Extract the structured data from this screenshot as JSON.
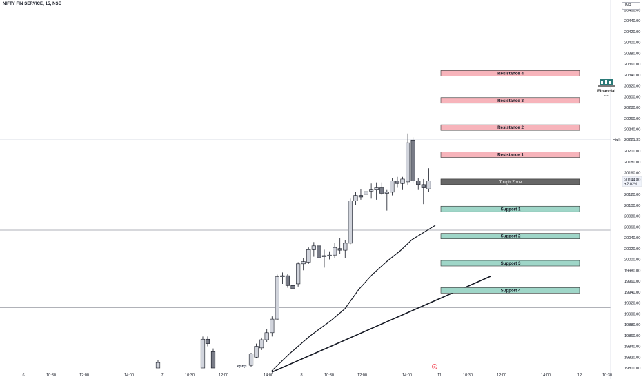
{
  "header": {
    "symbol_title": "NIFTY FIN SERVICE, 15, NSE",
    "currency": "INR"
  },
  "logo": {
    "name": "Financial",
    "subtext": "BUZZ"
  },
  "colors": {
    "up_candle": "#d1d4dc",
    "down_candle": "#787b86",
    "wick": "#131722",
    "resistance_fill": "#f7b4bb",
    "support_fill": "#9fd6c8",
    "tough_zone_fill": "#676767",
    "hline": "#9598a1",
    "axis_text": "#131722"
  },
  "chart_data": {
    "type": "candlestick",
    "ylim": [
      19800,
      20480
    ],
    "y_ticks": [
      19800,
      19820,
      19840,
      19860,
      19880,
      19900,
      19920,
      19940,
      19960,
      19980,
      20000,
      20020,
      20040,
      20060,
      20080,
      20100,
      20120,
      20140,
      20160,
      20180,
      20200,
      20220,
      20240,
      20260,
      20280,
      20300,
      20320,
      20340,
      20360,
      20380,
      20400,
      20420,
      20440,
      20460
    ],
    "x_labels": [
      "6",
      "10:30",
      "12:00",
      "14:00",
      "7",
      "10:30",
      "12:00",
      "14:00",
      "8",
      "10:30",
      "12:00",
      "14:00",
      "11",
      "10:30",
      "12:00",
      "14:00",
      "12",
      "10:30"
    ],
    "candles": [
      {
        "o": 19800,
        "h": 19815,
        "l": 19800,
        "c": 19810
      },
      {
        "o": 19800,
        "h": 19858,
        "l": 19800,
        "c": 19853
      },
      {
        "o": 19853,
        "h": 19858,
        "l": 19840,
        "c": 19845
      },
      {
        "o": 19830,
        "h": 19836,
        "l": 19800,
        "c": 19800
      },
      {
        "o": 19802,
        "h": 19806,
        "l": 19800,
        "c": 19804
      },
      {
        "o": 19802,
        "h": 19806,
        "l": 19800,
        "c": 19805
      },
      {
        "o": 19805,
        "h": 19828,
        "l": 19802,
        "c": 19826
      },
      {
        "o": 19820,
        "h": 19845,
        "l": 19818,
        "c": 19840
      },
      {
        "o": 19837,
        "h": 19856,
        "l": 19833,
        "c": 19852
      },
      {
        "o": 19852,
        "h": 19872,
        "l": 19848,
        "c": 19865
      },
      {
        "o": 19865,
        "h": 19895,
        "l": 19858,
        "c": 19890
      },
      {
        "o": 19890,
        "h": 19972,
        "l": 19888,
        "c": 19968
      },
      {
        "o": 19968,
        "h": 19976,
        "l": 19955,
        "c": 19970
      },
      {
        "o": 19970,
        "h": 19974,
        "l": 19948,
        "c": 19952
      },
      {
        "o": 19952,
        "h": 19955,
        "l": 19940,
        "c": 19946
      },
      {
        "o": 19955,
        "h": 19995,
        "l": 19950,
        "c": 19992
      },
      {
        "o": 19992,
        "h": 20002,
        "l": 19980,
        "c": 19996
      },
      {
        "o": 19995,
        "h": 20022,
        "l": 19992,
        "c": 20018
      },
      {
        "o": 20018,
        "h": 20032,
        "l": 20005,
        "c": 20025
      },
      {
        "o": 20025,
        "h": 20032,
        "l": 19998,
        "c": 20003
      },
      {
        "o": 20005,
        "h": 20018,
        "l": 19985,
        "c": 20007
      },
      {
        "o": 20007,
        "h": 20015,
        "l": 20000,
        "c": 20008
      },
      {
        "o": 20008,
        "h": 20030,
        "l": 20002,
        "c": 20022
      },
      {
        "o": 20020,
        "h": 20040,
        "l": 20010,
        "c": 20017
      },
      {
        "o": 20017,
        "h": 20036,
        "l": 20002,
        "c": 20030
      },
      {
        "o": 20030,
        "h": 20112,
        "l": 20028,
        "c": 20108
      },
      {
        "o": 20108,
        "h": 20125,
        "l": 20100,
        "c": 20118
      },
      {
        "o": 20118,
        "h": 20130,
        "l": 20110,
        "c": 20115
      },
      {
        "o": 20120,
        "h": 20130,
        "l": 20110,
        "c": 20125
      },
      {
        "o": 20126,
        "h": 20140,
        "l": 20112,
        "c": 20128
      },
      {
        "o": 20128,
        "h": 20142,
        "l": 20110,
        "c": 20132
      },
      {
        "o": 20132,
        "h": 20142,
        "l": 20119,
        "c": 20122
      },
      {
        "o": 20122,
        "h": 20128,
        "l": 20090,
        "c": 20124
      },
      {
        "o": 20124,
        "h": 20150,
        "l": 20118,
        "c": 20145
      },
      {
        "o": 20145,
        "h": 20152,
        "l": 20132,
        "c": 20140
      },
      {
        "o": 20140,
        "h": 20152,
        "l": 20128,
        "c": 20148
      },
      {
        "o": 20143,
        "h": 20232,
        "l": 20138,
        "c": 20215
      },
      {
        "o": 20220,
        "h": 20225,
        "l": 20140,
        "c": 20145
      },
      {
        "o": 20145,
        "h": 20150,
        "l": 20128,
        "c": 20138
      },
      {
        "o": 20138,
        "h": 20148,
        "l": 20102,
        "c": 20132
      },
      {
        "o": 20130,
        "h": 20168,
        "l": 20125,
        "c": 20145
      }
    ],
    "levels": [
      {
        "label": "Resistance 4",
        "price": 20343,
        "kind": "resistance"
      },
      {
        "label": "Resistance 3",
        "price": 20293,
        "kind": "resistance"
      },
      {
        "label": "Resistance 2",
        "price": 20243,
        "kind": "resistance"
      },
      {
        "label": "Resistance 1",
        "price": 20193,
        "kind": "resistance"
      },
      {
        "label": "Tough Zone",
        "price": 20143,
        "kind": "tough"
      },
      {
        "label": "Support 1",
        "price": 20093,
        "kind": "support"
      },
      {
        "label": "Support 2",
        "price": 20043,
        "kind": "support"
      },
      {
        "label": "Support 3",
        "price": 19993,
        "kind": "support"
      },
      {
        "label": "Support 4",
        "price": 19943,
        "kind": "support"
      }
    ],
    "horizontal_lines": [
      20221.35,
      20054,
      19911
    ],
    "high_label": "High",
    "high_value": "20221.35",
    "last_price": "20144.80",
    "last_change": "+2.02%"
  }
}
